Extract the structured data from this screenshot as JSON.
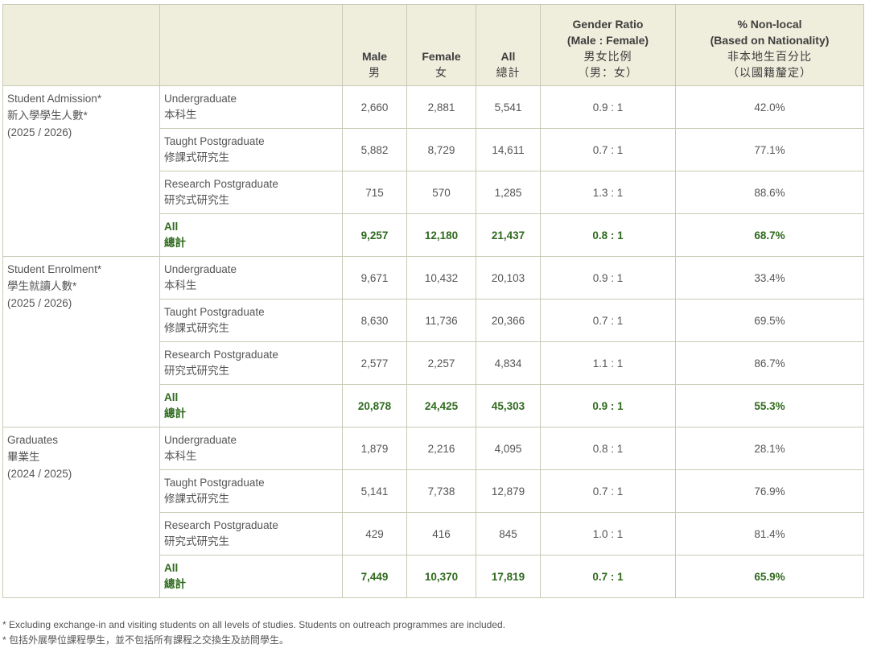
{
  "columns": {
    "male": {
      "en": "Male",
      "zh": "男"
    },
    "female": {
      "en": "Female",
      "zh": "女"
    },
    "all": {
      "en": "All",
      "zh": "總計"
    },
    "ratio": {
      "en1": "Gender Ratio",
      "en2": "(Male : Female)",
      "zh1": "男女比例",
      "zh2": "（男：女）"
    },
    "nonlocal": {
      "en1": "% Non-local",
      "en2": "(Based on Nationality)",
      "zh1": "非本地生百分比",
      "zh2": "（以國籍釐定）"
    }
  },
  "groups": [
    {
      "en": "Student Admission*",
      "zh": "新入學學生人數*",
      "year": "(2025 / 2026)",
      "rows": [
        {
          "en": "Undergraduate",
          "zh": "本科生",
          "male": "2,660",
          "female": "2,881",
          "all": "5,541",
          "ratio": "0.9 : 1",
          "nonlocal": "42.0%"
        },
        {
          "en": "Taught Postgraduate",
          "zh": "修課式研究生",
          "male": "5,882",
          "female": "8,729",
          "all": "14,611",
          "ratio": "0.7 : 1",
          "nonlocal": "77.1%"
        },
        {
          "en": "Research Postgraduate",
          "zh": "研究式研究生",
          "male": "715",
          "female": "570",
          "all": "1,285",
          "ratio": "1.3 : 1",
          "nonlocal": "88.6%"
        },
        {
          "en": "All",
          "zh": "總計",
          "male": "9,257",
          "female": "12,180",
          "all": "21,437",
          "ratio": "0.8 : 1",
          "nonlocal": "68.7%"
        }
      ]
    },
    {
      "en": "Student Enrolment*",
      "zh": "學生就讀人數*",
      "year": "(2025 / 2026)",
      "rows": [
        {
          "en": "Undergraduate",
          "zh": "本科生",
          "male": "9,671",
          "female": "10,432",
          "all": "20,103",
          "ratio": "0.9 : 1",
          "nonlocal": "33.4%"
        },
        {
          "en": "Taught Postgraduate",
          "zh": "修課式研究生",
          "male": "8,630",
          "female": "11,736",
          "all": "20,366",
          "ratio": "0.7 : 1",
          "nonlocal": "69.5%"
        },
        {
          "en": "Research Postgraduate",
          "zh": "研究式研究生",
          "male": "2,577",
          "female": "2,257",
          "all": "4,834",
          "ratio": "1.1 : 1",
          "nonlocal": "86.7%"
        },
        {
          "en": "All",
          "zh": "總計",
          "male": "20,878",
          "female": "24,425",
          "all": "45,303",
          "ratio": "0.9 : 1",
          "nonlocal": "55.3%"
        }
      ]
    },
    {
      "en": "Graduates",
      "zh": "畢業生",
      "year": "(2024 / 2025)",
      "rows": [
        {
          "en": "Undergraduate",
          "zh": "本科生",
          "male": "1,879",
          "female": "2,216",
          "all": "4,095",
          "ratio": "0.8 : 1",
          "nonlocal": "28.1%"
        },
        {
          "en": "Taught Postgraduate",
          "zh": "修課式研究生",
          "male": "5,141",
          "female": "7,738",
          "all": "12,879",
          "ratio": "0.7 : 1",
          "nonlocal": "76.9%"
        },
        {
          "en": "Research Postgraduate",
          "zh": "研究式研究生",
          "male": "429",
          "female": "416",
          "all": "845",
          "ratio": "1.0 : 1",
          "nonlocal": "81.4%"
        },
        {
          "en": "All",
          "zh": "總計",
          "male": "7,449",
          "female": "10,370",
          "all": "17,819",
          "ratio": "0.7 : 1",
          "nonlocal": "65.9%"
        }
      ]
    }
  ],
  "notes": {
    "en": "* Excluding exchange-in and visiting students on all levels of studies. Students on outreach programmes are included.",
    "zh": "* 包括外展學位課程學生，並不包括所有課程之交換生及訪問學生。"
  }
}
